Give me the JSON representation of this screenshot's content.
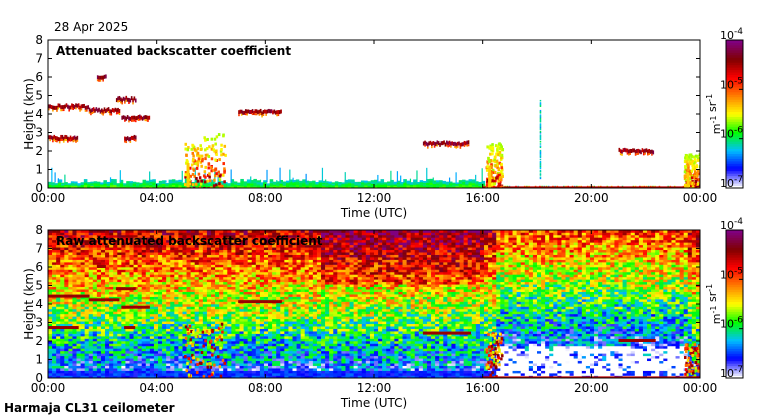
{
  "date": "28 Apr 2025",
  "footer": "Harmaja CL31 ceilometer",
  "chart_data": [
    {
      "type": "heatmap",
      "title": "Attenuated backscatter coefficient",
      "xlabel": "Time (UTC)",
      "ylabel": "Height (km)",
      "x_ticks": [
        "00:00",
        "04:00",
        "08:00",
        "12:00",
        "16:00",
        "20:00",
        "00:00"
      ],
      "x_range_hours": [
        0,
        24
      ],
      "y_ticks": [
        0,
        1,
        2,
        3,
        4,
        5,
        6,
        7,
        8
      ],
      "ylim": [
        0,
        8
      ],
      "colorbar": {
        "scale": "log",
        "range": [
          1e-07,
          0.0001
        ],
        "tick_labels": [
          "10-7",
          "10-6",
          "10-5",
          "10-4"
        ],
        "unit_label": "m-1 sr-1"
      },
      "features": [
        {
          "kind": "surface layer",
          "start_hour": 0,
          "end_hour": 16,
          "height_km": [
            0,
            0.5
          ]
        },
        {
          "kind": "cloud layer",
          "start_hour": 0,
          "end_hour": 1.5,
          "height_km": 4.4
        },
        {
          "kind": "cloud layer",
          "start_hour": 1.5,
          "end_hour": 2.6,
          "height_km": 4.2
        },
        {
          "kind": "cloud",
          "start_hour": 1.8,
          "end_hour": 2.1,
          "height_km": 6.0
        },
        {
          "kind": "cloud",
          "start_hour": 2.5,
          "end_hour": 3.2,
          "height_km": 4.8
        },
        {
          "kind": "cloud layer",
          "start_hour": 0,
          "end_hour": 1.1,
          "height_km": 2.7
        },
        {
          "kind": "cloud",
          "start_hour": 2.8,
          "end_hour": 3.2,
          "height_km": 2.7
        },
        {
          "kind": "cloud layer",
          "start_hour": 2.7,
          "end_hour": 3.7,
          "height_km": 3.8
        },
        {
          "kind": "precipitation",
          "start_hour": 5.0,
          "end_hour": 6.5,
          "height_km": [
            0,
            3.0
          ]
        },
        {
          "kind": "cloud layer",
          "start_hour": 7.0,
          "end_hour": 8.6,
          "height_km": 4.1
        },
        {
          "kind": "cloud layer",
          "start_hour": 13.8,
          "end_hour": 15.5,
          "height_km": 2.4
        },
        {
          "kind": "precipitation",
          "start_hour": 16.1,
          "end_hour": 16.7,
          "height_km": [
            0,
            2.5
          ]
        },
        {
          "kind": "aerosol streak",
          "start_hour": 18.1,
          "end_hour": 18.2,
          "height_km": [
            0.5,
            4.8
          ]
        },
        {
          "kind": "cloud layer",
          "start_hour": 21.0,
          "end_hour": 22.3,
          "height_km": 2.0
        },
        {
          "kind": "precipitation",
          "start_hour": 23.4,
          "end_hour": 24.0,
          "height_km": [
            0,
            1.9
          ]
        }
      ]
    },
    {
      "type": "heatmap",
      "title": "Raw attenuated backscatter coefficient",
      "xlabel": "Time (UTC)",
      "ylabel": "Height (km)",
      "x_ticks": [
        "00:00",
        "04:00",
        "08:00",
        "12:00",
        "16:00",
        "20:00",
        "00:00"
      ],
      "x_range_hours": [
        0,
        24
      ],
      "y_ticks": [
        0,
        1,
        2,
        3,
        4,
        5,
        6,
        7,
        8
      ],
      "ylim": [
        0,
        8
      ],
      "colorbar": {
        "scale": "log",
        "range": [
          1e-07,
          0.0001
        ],
        "tick_labels": [
          "10-7",
          "10-6",
          "10-5",
          "10-4"
        ],
        "unit_label": "m-1 sr-1"
      }
    }
  ],
  "colors": {
    "colormap": [
      "#ffffff",
      "#0000ff",
      "#00bfff",
      "#00ff00",
      "#ffff00",
      "#ff8000",
      "#ff0000",
      "#800000",
      "#800080"
    ]
  }
}
